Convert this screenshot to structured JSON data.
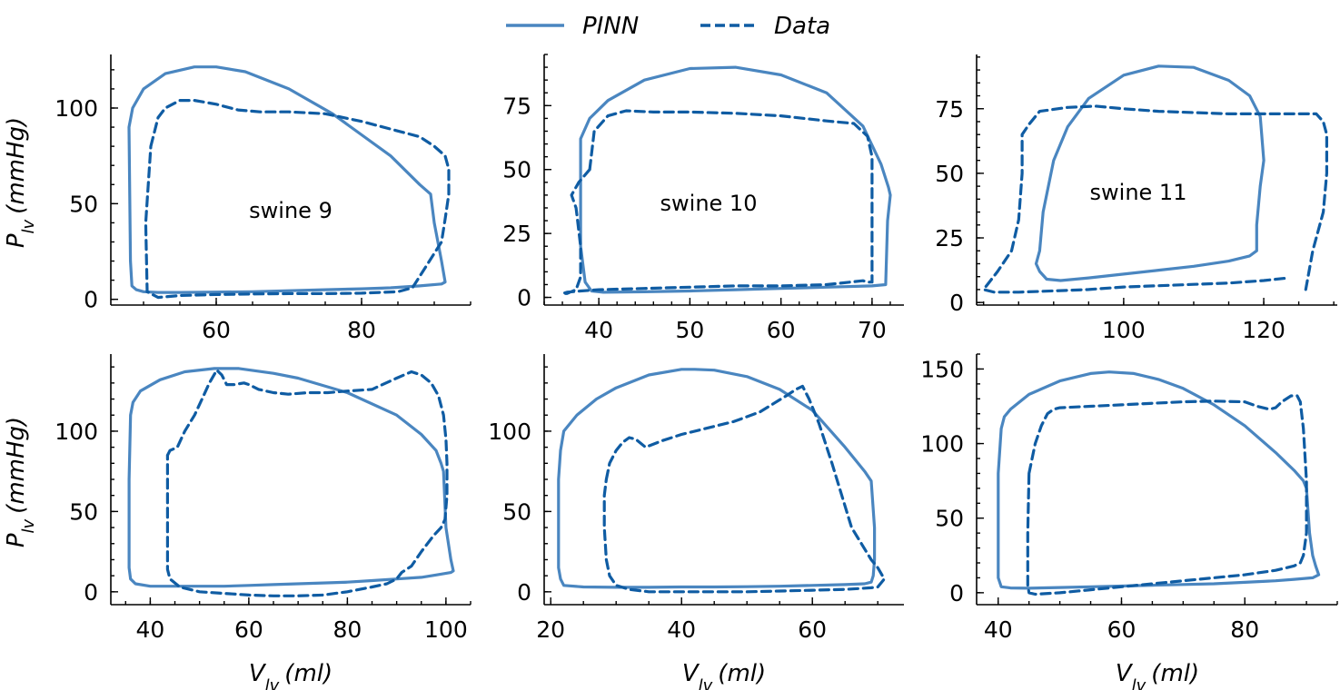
{
  "legend": {
    "pinn_label": "PINN",
    "data_label": "Data"
  },
  "colors": {
    "pinn": "#4a86c0",
    "data": "#0f5ca3"
  },
  "axis_labels": {
    "y_main": "P",
    "y_sub": "lv",
    "y_unit": "(mmHg)",
    "x_main": "V",
    "x_sub": "lv",
    "x_unit": "(ml)"
  },
  "chart_data": [
    {
      "type": "line",
      "title": "swine 9",
      "xlim": [
        45.5,
        95
      ],
      "ylim": [
        -3,
        128
      ],
      "xticks": [
        60,
        80
      ],
      "yticks": [
        0,
        50,
        100
      ],
      "xminor": 5,
      "yminor": 10,
      "series": [
        {
          "name": "PINN",
          "x": [
            48,
            48.5,
            50,
            53,
            57,
            60,
            64,
            70,
            76,
            80,
            84,
            88,
            89.5,
            90,
            91,
            91.5,
            91,
            88,
            84,
            80,
            75,
            70,
            65,
            60,
            55,
            52,
            50,
            49,
            48.4,
            48.2,
            48
          ],
          "y": [
            90,
            100,
            110,
            118,
            121.5,
            121.5,
            119,
            110,
            97,
            86,
            75,
            60,
            55,
            40,
            20,
            9,
            8,
            7,
            6,
            5.5,
            5,
            4.5,
            4,
            3.8,
            3.6,
            3.6,
            4,
            5,
            7,
            20,
            90
          ]
        },
        {
          "name": "Data",
          "x": [
            51,
            52,
            53,
            55,
            57,
            60,
            63,
            66,
            70,
            75,
            80,
            85,
            88,
            90,
            91.5,
            92,
            92,
            91.5,
            91,
            89,
            87,
            85,
            80,
            75,
            70,
            65,
            60,
            55,
            52,
            50.5,
            50.3,
            51
          ],
          "y": [
            80,
            95,
            100,
            104,
            104,
            102,
            99,
            98,
            98,
            97,
            93,
            88,
            85,
            80,
            75,
            68,
            55,
            42,
            30,
            18,
            6,
            4,
            3.2,
            3,
            3,
            2.8,
            2.5,
            2,
            1,
            4,
            40,
            80
          ]
        }
      ]
    },
    {
      "type": "line",
      "title": "swine 10",
      "xlim": [
        34,
        73.5
      ],
      "ylim": [
        -3,
        95
      ],
      "xticks": [
        40,
        50,
        60,
        70
      ],
      "yticks": [
        0,
        25,
        50,
        75
      ],
      "xminor": 2,
      "yminor": 5,
      "series": [
        {
          "name": "PINN",
          "x": [
            38,
            38,
            39,
            41,
            45,
            50,
            55,
            60,
            65,
            69,
            71,
            71.8,
            72,
            71.7,
            71.5,
            70,
            65,
            60,
            55,
            50,
            45,
            40.5,
            39.2,
            38.5,
            38,
            38
          ],
          "y": [
            45,
            62,
            70,
            77,
            85,
            89.5,
            90,
            87,
            80,
            67,
            52,
            43,
            40,
            30,
            5,
            4.5,
            4,
            3.5,
            3,
            2.5,
            2.2,
            2,
            2.5,
            6,
            20,
            45
          ]
        },
        {
          "name": "Data",
          "x": [
            39,
            39.5,
            41,
            43,
            46,
            50,
            55,
            60,
            65,
            68,
            69.5,
            70,
            70,
            70,
            69.5,
            69,
            65,
            60,
            55,
            50,
            45,
            40,
            38,
            36.5,
            36,
            36.5,
            37.5,
            38,
            38,
            37.5,
            37,
            37.8,
            39
          ],
          "y": [
            50,
            65,
            71,
            73,
            72.5,
            72.5,
            72,
            71,
            69,
            68,
            63,
            55,
            30,
            6,
            6,
            6.5,
            5,
            4.5,
            4.5,
            4,
            3.5,
            3,
            2.5,
            2,
            1.5,
            1.5,
            3,
            8,
            20,
            35,
            40,
            45,
            50
          ]
        }
      ]
    },
    {
      "type": "line",
      "title": "swine 11",
      "xlim": [
        79,
        130.5
      ],
      "ylim": [
        -1,
        96
      ],
      "xticks": [
        100,
        120
      ],
      "yticks": [
        0,
        25,
        50,
        75
      ],
      "xminor": 5,
      "yminor": 5,
      "series": [
        {
          "name": "PINN",
          "x": [
            88,
            88.5,
            90,
            92,
            95,
            100,
            105,
            110,
            115,
            118,
            119.5,
            120,
            119.5,
            119,
            119,
            118,
            115,
            110,
            105,
            100,
            95,
            91,
            89,
            88,
            87.5,
            88
          ],
          "y": [
            20,
            35,
            55,
            68,
            79,
            88,
            91.5,
            91,
            86,
            80,
            72,
            55,
            45,
            30,
            20,
            18,
            16,
            14,
            12.5,
            11,
            9.5,
            8.5,
            9,
            12,
            15,
            20
          ]
        },
        {
          "name": "Data",
          "x": [
            126,
            127,
            128.5,
            129,
            129,
            128.5,
            127.5,
            125,
            120,
            115,
            110,
            105,
            100,
            96,
            92,
            88,
            86.5,
            85.5,
            85.5,
            85,
            84,
            82,
            80,
            81.5,
            85,
            90,
            95,
            100,
            105,
            110,
            115,
            120,
            123.5
          ],
          "y": [
            5,
            20,
            35,
            50,
            65,
            70,
            73,
            73,
            73,
            73,
            73.5,
            74,
            75,
            76,
            75.5,
            74,
            69,
            65,
            50,
            32,
            20,
            12,
            5,
            4,
            4,
            4.5,
            5,
            6,
            6.5,
            7,
            7.5,
            8.5,
            9.5
          ]
        }
      ]
    },
    {
      "type": "line",
      "title": "",
      "xlim": [
        32,
        105
      ],
      "ylim": [
        -8,
        148
      ],
      "xticks": [
        40,
        60,
        80,
        100
      ],
      "yticks": [
        0,
        50,
        100
      ],
      "xminor": 5,
      "yminor": 10,
      "series": [
        {
          "name": "PINN",
          "x": [
            36,
            36.5,
            38,
            42,
            47,
            53,
            58,
            65,
            70,
            80,
            90,
            95,
            98,
            99,
            99.5,
            100,
            101,
            101.5,
            101,
            98,
            95,
            90,
            85,
            80,
            75,
            70,
            65,
            60,
            55,
            50,
            45,
            40,
            37,
            36,
            35.7,
            35.7,
            36
          ],
          "y": [
            110,
            118,
            125,
            132,
            137,
            139,
            139,
            136,
            133,
            124,
            110,
            98,
            88,
            80,
            75,
            40,
            20,
            13,
            12,
            10.5,
            9,
            8,
            7,
            6,
            5.5,
            5,
            4.5,
            4,
            3.5,
            3.5,
            3.5,
            3.5,
            5,
            8,
            15,
            70,
            110
          ]
        },
        {
          "name": "Data",
          "x": [
            43.5,
            44,
            45.5,
            47,
            49,
            50.5,
            52,
            53.5,
            54.5,
            55.5,
            57,
            59,
            60,
            62,
            65,
            68,
            72,
            76,
            80,
            85,
            90,
            93,
            95,
            97,
            98.5,
            99.5,
            100,
            100.2,
            100.2,
            99.8,
            99,
            97.5,
            95,
            93,
            91,
            90,
            88,
            85,
            80,
            75,
            70,
            65,
            60,
            55,
            50,
            46,
            44,
            43.5,
            43.5,
            43.5
          ],
          "y": [
            85,
            88,
            90,
            100,
            110,
            120,
            130,
            138,
            135,
            129,
            129,
            130,
            129,
            126,
            124,
            123,
            124,
            124,
            125,
            126,
            133,
            137,
            135,
            130,
            122,
            110,
            95,
            80,
            60,
            45,
            40,
            35,
            25,
            16,
            12,
            8,
            5,
            3,
            0,
            -2,
            -2.5,
            -2.5,
            -2,
            -1,
            0,
            3,
            8,
            14,
            40,
            85
          ]
        }
      ]
    },
    {
      "type": "line",
      "title": "",
      "xlim": [
        19,
        74
      ],
      "ylim": [
        -8,
        148
      ],
      "xticks": [
        20,
        40,
        60
      ],
      "yticks": [
        0,
        50,
        100
      ],
      "xminor": 5,
      "yminor": 10,
      "series": [
        {
          "name": "PINN",
          "x": [
            21.5,
            22,
            24,
            27,
            30,
            35,
            40,
            42,
            45,
            50,
            55,
            60,
            65,
            68,
            69,
            69.5,
            69.5,
            69.3,
            69,
            68,
            65,
            60,
            55,
            50,
            45,
            40,
            35,
            30,
            25,
            22,
            21.5,
            21.2,
            21.2,
            21.5
          ],
          "y": [
            88,
            100,
            110,
            120,
            127,
            135,
            138.5,
            138.5,
            138,
            134,
            126,
            113,
            90,
            75,
            69,
            40,
            20,
            10,
            6,
            5,
            4.5,
            4,
            3.5,
            3.2,
            3,
            3,
            2.8,
            2.8,
            3,
            4,
            8,
            15,
            70,
            88
          ]
        },
        {
          "name": "Data",
          "x": [
            28.5,
            29,
            30,
            31,
            32,
            33,
            34.5,
            37,
            40,
            43,
            46,
            48,
            50,
            52,
            54,
            56,
            57.5,
            58.5,
            59.5,
            61,
            63,
            64.5,
            66,
            67.5,
            69,
            70,
            71,
            70,
            69,
            67,
            65,
            60,
            55,
            50,
            45,
            40,
            35,
            32,
            30,
            29,
            28.5,
            28.2,
            28.2,
            28.5
          ],
          "y": [
            70,
            80,
            88,
            93,
            96,
            95,
            90,
            94,
            98,
            101,
            104,
            106,
            109,
            112,
            117,
            122,
            126,
            128,
            120,
            105,
            80,
            60,
            40,
            30,
            20,
            15,
            8,
            3,
            2.5,
            2,
            1.5,
            1,
            0.5,
            0,
            0,
            0,
            0,
            1.5,
            4,
            10,
            20,
            40,
            60,
            70
          ]
        }
      ]
    },
    {
      "type": "line",
      "title": "",
      "xlim": [
        36.5,
        95
      ],
      "ylim": [
        -8,
        160
      ],
      "xticks": [
        40,
        60,
        80
      ],
      "yticks": [
        0,
        50,
        100,
        150
      ],
      "xminor": 5,
      "yminor": 10,
      "series": [
        {
          "name": "PINN",
          "x": [
            40.5,
            41,
            42,
            45,
            50,
            55,
            58,
            62,
            66,
            70,
            75,
            80,
            85,
            88,
            89.5,
            90,
            90.5,
            91,
            91.5,
            92,
            91,
            88,
            85,
            80,
            75,
            70,
            65,
            60,
            55,
            50,
            45,
            42,
            40.5,
            40,
            40,
            40.5
          ],
          "y": [
            110,
            118,
            123,
            133,
            142,
            147,
            148,
            147,
            143,
            137,
            126,
            112,
            94,
            82,
            75,
            70,
            40,
            25,
            18,
            12,
            10,
            9,
            8,
            7,
            6,
            5.5,
            5,
            4.5,
            4,
            3.5,
            3,
            3.2,
            4,
            10,
            80,
            110
          ]
        },
        {
          "name": "Data",
          "x": [
            45,
            46,
            47,
            48,
            49,
            50,
            55,
            60,
            65,
            70,
            75,
            80,
            82,
            84,
            85,
            86,
            87.5,
            88.5,
            89,
            89.5,
            90,
            90,
            89.5,
            89,
            88,
            85,
            80,
            75,
            70,
            65,
            60,
            55,
            50,
            46,
            45,
            44.8,
            44.8,
            45
          ],
          "y": [
            80,
            100,
            112,
            120,
            123,
            124,
            125,
            126,
            127,
            128,
            128.5,
            128,
            125,
            123,
            124,
            128,
            132,
            132,
            128,
            110,
            75,
            40,
            25,
            20,
            18,
            15,
            12,
            10,
            8,
            6,
            4,
            2,
            0,
            -1,
            0,
            5,
            40,
            80
          ]
        }
      ]
    }
  ]
}
